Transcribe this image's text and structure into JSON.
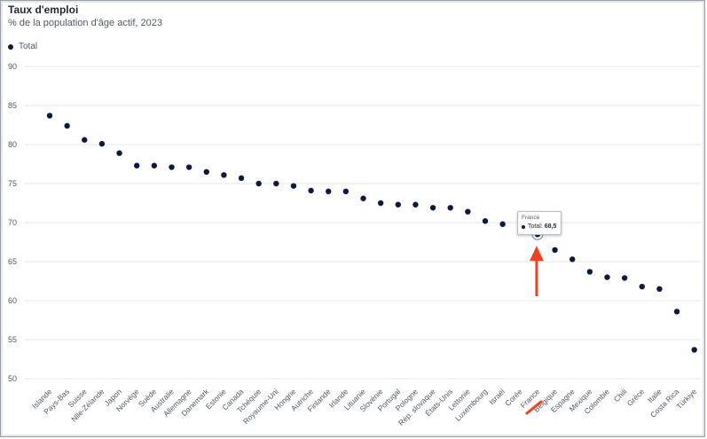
{
  "header": {
    "title": "Taux d'emploi",
    "subtitle": "% de la population d'âge actif, 2023"
  },
  "legend": {
    "label": "Total"
  },
  "tooltip": {
    "country": "France",
    "series": "Total:",
    "value": "68,5"
  },
  "colors": {
    "point": "#0c1a3f",
    "highlight_annotation": "#f1421f",
    "grid": "#e1e4e8",
    "tick_text": "#4f5966"
  },
  "chart_data": {
    "type": "scatter",
    "title": "Taux d'emploi",
    "subtitle": "% de la population d'âge actif, 2023",
    "xlabel": "",
    "ylabel": "",
    "ylim": [
      50,
      90
    ],
    "yticks": [
      50,
      55,
      60,
      65,
      70,
      75,
      80,
      85,
      90
    ],
    "grid": true,
    "legend_position": "top-left",
    "highlighted_category": "France",
    "categories": [
      "Islande",
      "Pays-Bas",
      "Suisse",
      "Nlle-Zélande",
      "Japon",
      "Norvège",
      "Suède",
      "Australie",
      "Allemagne",
      "Danemark",
      "Estonie",
      "Canada",
      "Tchéquie",
      "Royaume-Uni",
      "Hongrie",
      "Autriche",
      "Finlande",
      "Irlande",
      "Lituanie",
      "Slovénie",
      "Portugal",
      "Pologne",
      "Rép. slovaque",
      "États-Unis",
      "Lettonie",
      "Luxembourg",
      "Israël",
      "Corée",
      "France",
      "Belgique",
      "Espagne",
      "Mexique",
      "Colombie",
      "Chili",
      "Grèce",
      "Italie",
      "Costa Rica",
      "Türkiye"
    ],
    "series": [
      {
        "name": "Total",
        "values": [
          83.7,
          82.4,
          80.6,
          80.1,
          78.9,
          77.3,
          77.3,
          77.1,
          77.1,
          76.5,
          76.1,
          75.7,
          75.0,
          75.0,
          74.7,
          74.1,
          74.0,
          74.0,
          73.1,
          72.5,
          72.3,
          72.3,
          71.9,
          71.9,
          71.4,
          70.2,
          69.8,
          69.2,
          68.5,
          66.5,
          65.3,
          63.7,
          63.0,
          62.9,
          61.8,
          61.5,
          58.6,
          53.7
        ]
      }
    ]
  }
}
